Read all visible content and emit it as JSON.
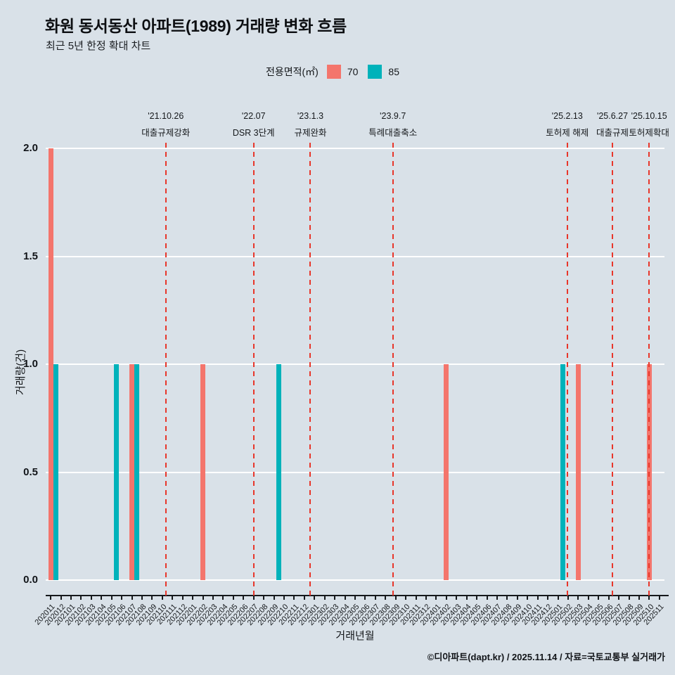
{
  "page": {
    "title": "화원 동서동산 아파트(1989) 거래량 변화 흐름",
    "subtitle": "최근 5년 한정 확대 차트",
    "footer": "©디아파트(dapt.kr) / 2025.11.14 / 자료=국토교통부 실거래가"
  },
  "legend": {
    "label": "전용면적(㎡)"
  },
  "colors": {
    "background": "#d9e1e8",
    "gridline": "#ffffff",
    "annotation_line": "#e8362a",
    "axis": "#15181b"
  },
  "chart_data": {
    "type": "bar",
    "title": "화원 동서동산 아파트(1989) 거래량 변화 흐름",
    "subtitle": "최근 5년 한정 확대 차트",
    "xlabel": "거래년월",
    "ylabel": "거래량(건)",
    "ylim": [
      0,
      2.0
    ],
    "yticks": [
      0.0,
      0.5,
      1.0,
      1.5,
      2.0
    ],
    "grid": true,
    "legend_position": "top-center",
    "categories": [
      "202011",
      "202012",
      "202101",
      "202102",
      "202103",
      "202104",
      "202105",
      "202106",
      "202107",
      "202108",
      "202109",
      "202110",
      "202111",
      "202112",
      "202201",
      "202202",
      "202203",
      "202204",
      "202205",
      "202206",
      "202207",
      "202208",
      "202209",
      "202210",
      "202211",
      "202212",
      "202301",
      "202302",
      "202303",
      "202304",
      "202305",
      "202306",
      "202307",
      "202308",
      "202309",
      "202310",
      "202311",
      "202312",
      "202401",
      "202402",
      "202403",
      "202404",
      "202405",
      "202406",
      "202407",
      "202408",
      "202409",
      "202410",
      "202411",
      "202412",
      "202501",
      "202502",
      "202503",
      "202504",
      "202505",
      "202506",
      "202507",
      "202508",
      "202509",
      "202510",
      "202511"
    ],
    "series": [
      {
        "name": "70",
        "color": "#f4756c",
        "values": {
          "202011": 2,
          "202107": 1,
          "202202": 1,
          "202402": 1,
          "202503": 1,
          "202510": 1
        }
      },
      {
        "name": "85",
        "color": "#00b2ba",
        "values": {
          "202011": 1,
          "202105": 1,
          "202107": 1,
          "202209": 1,
          "202501": 1
        }
      }
    ],
    "annotations": [
      {
        "date_label": "'21.10.26",
        "event": "대출규제강화",
        "month": "202110",
        "day": 26
      },
      {
        "date_label": "'22.07",
        "event": "DSR 3단계",
        "month": "202207",
        "day": null
      },
      {
        "date_label": "'23.1.3",
        "event": "규제완화",
        "month": "202301",
        "day": 3
      },
      {
        "date_label": "'23.9.7",
        "event": "특례대출축소",
        "month": "202309",
        "day": 7
      },
      {
        "date_label": "'25.2.13",
        "event": "토허제 해제",
        "month": "202502",
        "day": 13
      },
      {
        "date_label": "'25.6.27",
        "event": "대출규제",
        "month": "202506",
        "day": 27
      },
      {
        "date_label": "'25.10.15",
        "event": "토허제확대",
        "month": "202510",
        "day": 15
      }
    ]
  }
}
